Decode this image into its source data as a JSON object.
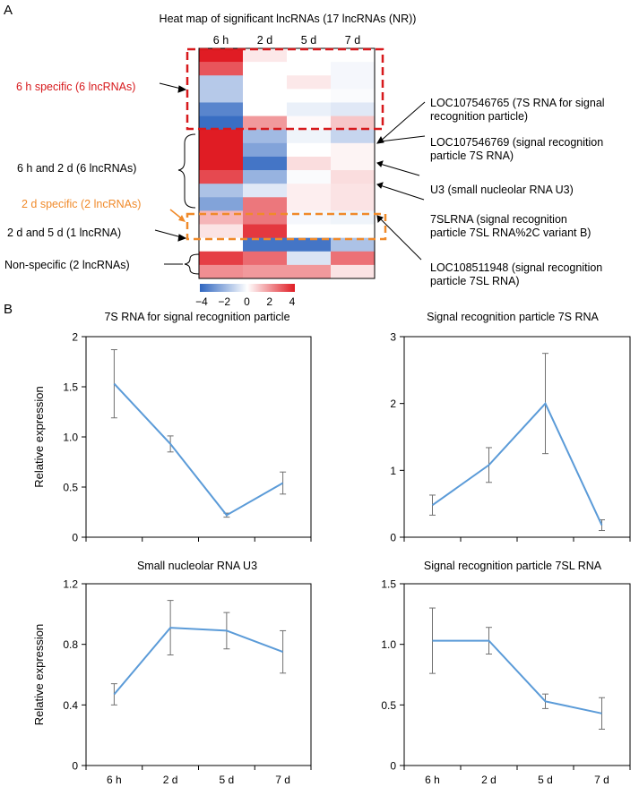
{
  "panel_labels": {
    "a": "A",
    "b": "B"
  },
  "colors": {
    "low": "#2f66c0",
    "mid": "#ffffff",
    "high": "#e01c24",
    "line": "#5b9bd8",
    "errorbar": "#707070",
    "red_box": "#d7191c",
    "orange_box": "#f08a2a",
    "group_red_text": "#d7191c",
    "group_orange_text": "#f08a2a"
  },
  "heatmap": {
    "title": "Heat map of significant lncRNAs (17 lncRNAs (NR))",
    "columns": [
      "6 h",
      "2 d",
      "5 d",
      "7 d"
    ],
    "colorbar": {
      "ticks": [
        "−4",
        "−2",
        "0",
        "2",
        "4"
      ],
      "min": -4,
      "max": 4
    },
    "rows": [
      [
        4.0,
        0.4,
        0.0,
        0.0
      ],
      [
        3.0,
        0.0,
        0.0,
        -0.2
      ],
      [
        -1.4,
        0.0,
        0.4,
        -0.2
      ],
      [
        -1.4,
        0.0,
        0.0,
        -0.1
      ],
      [
        -3.2,
        0.0,
        -0.4,
        -0.6
      ],
      [
        -3.8,
        1.8,
        0.1,
        1.0
      ],
      [
        4.3,
        -1.8,
        -0.3,
        -1.1
      ],
      [
        4.2,
        -2.4,
        0.0,
        0.2
      ],
      [
        4.0,
        -3.6,
        0.6,
        0.2
      ],
      [
        3.2,
        -2.0,
        -0.1,
        0.6
      ],
      [
        -1.6,
        -0.6,
        0.3,
        0.5
      ],
      [
        -2.4,
        2.4,
        0.3,
        0.5
      ],
      [
        1.3,
        2.4,
        -0.2,
        -0.3
      ],
      [
        0.5,
        3.5,
        0.0,
        0.0
      ],
      [
        0.0,
        -3.6,
        -3.6,
        -1.6
      ],
      [
        3.4,
        2.6,
        -0.7,
        2.5
      ],
      [
        2.0,
        1.8,
        1.8,
        0.5
      ]
    ],
    "groups": [
      {
        "label": "6 h specific (6 lncRNAs)",
        "color": "red"
      },
      {
        "label": "6 h and 2 d (6 lncRNAs)",
        "color": "black"
      },
      {
        "label": "2 d specific (2 lncRNAs)",
        "color": "orange"
      },
      {
        "label": "2 d and 5 d (1 lncRNA)",
        "color": "black"
      },
      {
        "label": "Non-specific (2 lncRNAs)",
        "color": "black"
      }
    ],
    "annotations": [
      {
        "lines": [
          "LOC107546765 (7S RNA for signal",
          "recognition particle)"
        ]
      },
      {
        "lines": [
          "LOC107546769 (signal recognition",
          "particle 7S RNA)"
        ]
      },
      {
        "lines": [
          "U3 (small nucleolar RNA U3)"
        ]
      },
      {
        "lines": [
          "7SLRNA (signal recognition",
          "particle 7SL RNA%2C variant B)"
        ]
      },
      {
        "lines": [
          "LOC108511948 (signal recognition",
          "particle 7SL RNA)"
        ]
      }
    ]
  },
  "chart_data": [
    {
      "type": "line",
      "title": "7S RNA for signal recognition particle",
      "xlabel": "",
      "ylabel": "Relative expression",
      "categories": [
        "6 h",
        "2 d",
        "5 d",
        "7 d"
      ],
      "values": [
        1.53,
        0.93,
        0.22,
        0.54
      ],
      "error": [
        0.34,
        0.08,
        0.02,
        0.11
      ],
      "ylim": [
        0,
        2
      ],
      "yticks": [
        "0",
        "0.5",
        "1.0",
        "1.5",
        "2"
      ],
      "show_x_labels": false
    },
    {
      "type": "line",
      "title": "Signal recognition particle 7S RNA",
      "xlabel": "",
      "ylabel": "",
      "categories": [
        "6 h",
        "2 d",
        "5 d",
        "7 d"
      ],
      "values": [
        0.48,
        1.08,
        2.0,
        0.18
      ],
      "error": [
        0.15,
        0.26,
        0.75,
        0.08
      ],
      "ylim": [
        0,
        3
      ],
      "yticks": [
        "0",
        "1",
        "2",
        "3"
      ],
      "show_x_labels": false
    },
    {
      "type": "line",
      "title": "Small nucleolar RNA U3",
      "xlabel": "",
      "ylabel": "Relative expression",
      "categories": [
        "6 h",
        "2 d",
        "5 d",
        "7 d"
      ],
      "values": [
        0.47,
        0.91,
        0.89,
        0.75
      ],
      "error": [
        0.07,
        0.18,
        0.12,
        0.14
      ],
      "ylim": [
        0,
        1.2
      ],
      "yticks": [
        "0",
        "0.4",
        "0.8",
        "1.2"
      ],
      "show_x_labels": true
    },
    {
      "type": "line",
      "title": "Signal recognition particle 7SL RNA",
      "xlabel": "",
      "ylabel": "",
      "categories": [
        "6 h",
        "2 d",
        "5 d",
        "7 d"
      ],
      "values": [
        1.03,
        1.03,
        0.53,
        0.43
      ],
      "error": [
        0.27,
        0.11,
        0.06,
        0.13
      ],
      "ylim": [
        0,
        1.5
      ],
      "yticks": [
        "0",
        "0.5",
        "1.0",
        "1.5"
      ],
      "show_x_labels": true
    }
  ]
}
